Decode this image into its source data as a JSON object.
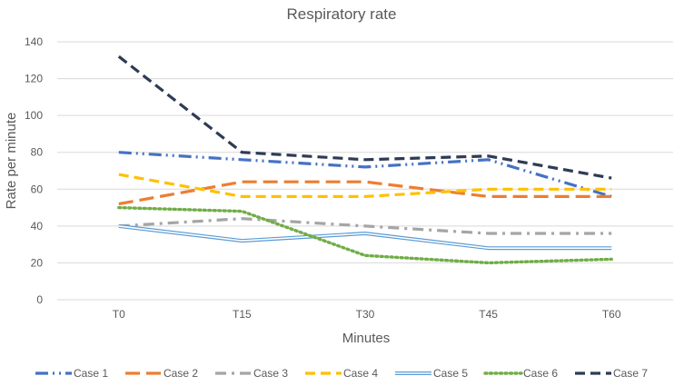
{
  "chart_data": {
    "type": "line",
    "title": "Respiratory rate",
    "xlabel": "Minutes",
    "ylabel": "Rate per minute",
    "categories": [
      "T0",
      "T15",
      "T30",
      "T45",
      "T60"
    ],
    "ylim": [
      0,
      140
    ],
    "yticks": [
      0,
      20,
      40,
      60,
      80,
      100,
      120,
      140
    ],
    "grid": true,
    "legend_position": "bottom",
    "series": [
      {
        "name": "Case 1",
        "values": [
          80,
          76,
          72,
          76,
          56
        ],
        "color": "#4472C4",
        "style": "dash-dot-dot"
      },
      {
        "name": "Case 2",
        "values": [
          52,
          64,
          64,
          56,
          56
        ],
        "color": "#ED7D31",
        "style": "long-dash"
      },
      {
        "name": "Case 3",
        "values": [
          40,
          44,
          40,
          36,
          36
        ],
        "color": "#A5A5A5",
        "style": "dash-dot"
      },
      {
        "name": "Case 4",
        "values": [
          68,
          56,
          56,
          60,
          60
        ],
        "color": "#FFC000",
        "style": "dash"
      },
      {
        "name": "Case 5",
        "values": [
          40,
          32,
          36,
          28,
          28
        ],
        "color": "#5B9BD5",
        "style": "double"
      },
      {
        "name": "Case 6",
        "values": [
          50,
          48,
          24,
          20,
          22
        ],
        "color": "#70AD47",
        "style": "dot"
      },
      {
        "name": "Case 7",
        "values": [
          132,
          80,
          76,
          78,
          66
        ],
        "color": "#2E3B55",
        "style": "dash"
      }
    ]
  }
}
